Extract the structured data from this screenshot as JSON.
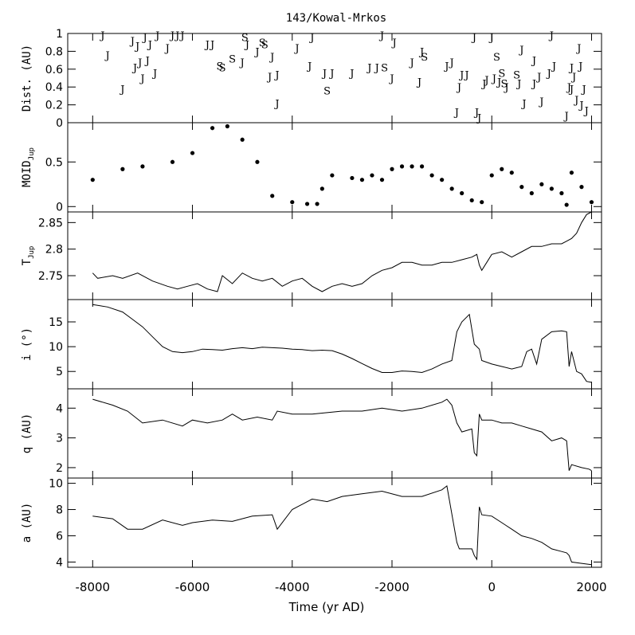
{
  "chart_data": {
    "type": "line",
    "title": "143/Kowal-Mrkos",
    "xlabel": "Time (yr AD)",
    "xlim": [
      -8500,
      2200
    ],
    "xticks": [
      -8000,
      -6000,
      -4000,
      -2000,
      0,
      2000
    ],
    "xtick_labels": [
      "-8000",
      "-6000",
      "-4000",
      "-2000",
      "0",
      "2000"
    ],
    "panels": [
      {
        "id": "dist",
        "ylabel": "Dist. (AU)",
        "ylim": [
          0,
          1
        ],
        "yticks": [
          0,
          0.2,
          0.4,
          0.6,
          0.8,
          1
        ],
        "ytick_labels": [
          "0",
          "0.2",
          "0.4",
          "0.6",
          "0.8",
          "1"
        ],
        "kind": "encounters",
        "encounters": [
          {
            "x": -7800,
            "y": 0.98,
            "label": "J"
          },
          {
            "x": -7700,
            "y": 0.76,
            "label": "J"
          },
          {
            "x": -7400,
            "y": 0.38,
            "label": "J"
          },
          {
            "x": -7200,
            "y": 0.92,
            "label": "J"
          },
          {
            "x": -7150,
            "y": 0.62,
            "label": "J"
          },
          {
            "x": -7100,
            "y": 0.86,
            "label": "J"
          },
          {
            "x": -7050,
            "y": 0.68,
            "label": "J"
          },
          {
            "x": -7000,
            "y": 0.5,
            "label": "J"
          },
          {
            "x": -6950,
            "y": 0.96,
            "label": "J"
          },
          {
            "x": -6900,
            "y": 0.7,
            "label": "J"
          },
          {
            "x": -6850,
            "y": 0.88,
            "label": "J"
          },
          {
            "x": -6750,
            "y": 0.56,
            "label": "J"
          },
          {
            "x": -6700,
            "y": 0.98,
            "label": "J"
          },
          {
            "x": -6500,
            "y": 0.84,
            "label": "J"
          },
          {
            "x": -6400,
            "y": 0.98,
            "label": "J"
          },
          {
            "x": -6300,
            "y": 0.98,
            "label": "J"
          },
          {
            "x": -6200,
            "y": 0.98,
            "label": "J"
          },
          {
            "x": -5700,
            "y": 0.88,
            "label": "J"
          },
          {
            "x": -5600,
            "y": 0.88,
            "label": "J"
          },
          {
            "x": -5450,
            "y": 0.64,
            "label": "S"
          },
          {
            "x": -5400,
            "y": 0.62,
            "label": "S"
          },
          {
            "x": -5200,
            "y": 0.72,
            "label": "S"
          },
          {
            "x": -5000,
            "y": 0.68,
            "label": "J"
          },
          {
            "x": -4950,
            "y": 0.96,
            "label": "S"
          },
          {
            "x": -4900,
            "y": 0.88,
            "label": "J"
          },
          {
            "x": -4700,
            "y": 0.8,
            "label": "J"
          },
          {
            "x": -4600,
            "y": 0.9,
            "label": "S"
          },
          {
            "x": -4550,
            "y": 0.88,
            "label": "S"
          },
          {
            "x": -4450,
            "y": 0.52,
            "label": "J"
          },
          {
            "x": -4400,
            "y": 0.74,
            "label": "J"
          },
          {
            "x": -4300,
            "y": 0.22,
            "label": "J"
          },
          {
            "x": -4300,
            "y": 0.54,
            "label": "J"
          },
          {
            "x": -3900,
            "y": 0.84,
            "label": "J"
          },
          {
            "x": -3650,
            "y": 0.64,
            "label": "J"
          },
          {
            "x": -3600,
            "y": 0.96,
            "label": "J"
          },
          {
            "x": -3350,
            "y": 0.56,
            "label": "J"
          },
          {
            "x": -3300,
            "y": 0.36,
            "label": "S"
          },
          {
            "x": -3200,
            "y": 0.56,
            "label": "J"
          },
          {
            "x": -2800,
            "y": 0.56,
            "label": "J"
          },
          {
            "x": -2450,
            "y": 0.62,
            "label": "J"
          },
          {
            "x": -2300,
            "y": 0.62,
            "label": "J"
          },
          {
            "x": -2200,
            "y": 0.98,
            "label": "J"
          },
          {
            "x": -2150,
            "y": 0.62,
            "label": "S"
          },
          {
            "x": -2000,
            "y": 0.5,
            "label": "J"
          },
          {
            "x": -1950,
            "y": 0.9,
            "label": "J"
          },
          {
            "x": -1600,
            "y": 0.68,
            "label": "J"
          },
          {
            "x": -1450,
            "y": 0.46,
            "label": "J"
          },
          {
            "x": -1400,
            "y": 0.8,
            "label": "J"
          },
          {
            "x": -1350,
            "y": 0.74,
            "label": "S"
          },
          {
            "x": -900,
            "y": 0.64,
            "label": "J"
          },
          {
            "x": -800,
            "y": 0.68,
            "label": "J"
          },
          {
            "x": -700,
            "y": 0.12,
            "label": "J"
          },
          {
            "x": -650,
            "y": 0.4,
            "label": "J"
          },
          {
            "x": -600,
            "y": 0.54,
            "label": "J"
          },
          {
            "x": -500,
            "y": 0.54,
            "label": "J"
          },
          {
            "x": -350,
            "y": 0.96,
            "label": "J"
          },
          {
            "x": -300,
            "y": 0.12,
            "label": "J"
          },
          {
            "x": -250,
            "y": 0.06,
            "label": "J"
          },
          {
            "x": -150,
            "y": 0.44,
            "label": "J"
          },
          {
            "x": -100,
            "y": 0.48,
            "label": "J"
          },
          {
            "x": 0,
            "y": 0.96,
            "label": "J"
          },
          {
            "x": 50,
            "y": 0.5,
            "label": "J"
          },
          {
            "x": 100,
            "y": 0.74,
            "label": "S"
          },
          {
            "x": 150,
            "y": 0.46,
            "label": "J"
          },
          {
            "x": 200,
            "y": 0.56,
            "label": "S"
          },
          {
            "x": 250,
            "y": 0.44,
            "label": "S"
          },
          {
            "x": 300,
            "y": 0.4,
            "label": "J"
          },
          {
            "x": 500,
            "y": 0.54,
            "label": "S"
          },
          {
            "x": 550,
            "y": 0.44,
            "label": "J"
          },
          {
            "x": 600,
            "y": 0.82,
            "label": "J"
          },
          {
            "x": 650,
            "y": 0.22,
            "label": "J"
          },
          {
            "x": 850,
            "y": 0.7,
            "label": "J"
          },
          {
            "x": 850,
            "y": 0.44,
            "label": "J"
          },
          {
            "x": 950,
            "y": 0.52,
            "label": "J"
          },
          {
            "x": 1000,
            "y": 0.24,
            "label": "J"
          },
          {
            "x": 1150,
            "y": 0.56,
            "label": "J"
          },
          {
            "x": 1200,
            "y": 0.98,
            "label": "J"
          },
          {
            "x": 1250,
            "y": 0.64,
            "label": "J"
          },
          {
            "x": 1500,
            "y": 0.08,
            "label": "J"
          },
          {
            "x": 1550,
            "y": 0.4,
            "label": "J"
          },
          {
            "x": 1600,
            "y": 0.38,
            "label": "J"
          },
          {
            "x": 1600,
            "y": 0.62,
            "label": "J"
          },
          {
            "x": 1650,
            "y": 0.52,
            "label": "J"
          },
          {
            "x": 1700,
            "y": 0.26,
            "label": "J"
          },
          {
            "x": 1750,
            "y": 0.84,
            "label": "J"
          },
          {
            "x": 1780,
            "y": 0.64,
            "label": "J"
          },
          {
            "x": 1850,
            "y": 0.38,
            "label": "J"
          },
          {
            "x": 1800,
            "y": 0.2,
            "label": "J"
          },
          {
            "x": 1900,
            "y": 0.14,
            "label": "J"
          }
        ]
      },
      {
        "id": "moid",
        "ylabel": "MOID",
        "ylabel_sub": "Jup",
        "ylim": [
          -0.06,
          0.94
        ],
        "yticks": [
          0,
          0.5
        ],
        "ytick_labels": [
          "0",
          "0.5"
        ],
        "kind": "scatter",
        "x": [
          -8000,
          -7400,
          -7000,
          -6400,
          -6000,
          -5600,
          -5300,
          -5000,
          -4700,
          -4400,
          -4000,
          -3700,
          -3500,
          -3400,
          -3200,
          -2800,
          -2600,
          -2400,
          -2200,
          -2000,
          -1800,
          -1600,
          -1400,
          -1200,
          -1000,
          -800,
          -600,
          -400,
          -200,
          0,
          200,
          400,
          600,
          800,
          1000,
          1200,
          1400,
          1500,
          1600,
          1800,
          2000
        ],
        "y": [
          0.3,
          0.42,
          0.45,
          0.5,
          0.6,
          0.88,
          0.9,
          0.75,
          0.5,
          0.12,
          0.05,
          0.03,
          0.03,
          0.2,
          0.35,
          0.32,
          0.3,
          0.35,
          0.3,
          0.42,
          0.45,
          0.45,
          0.45,
          0.35,
          0.3,
          0.2,
          0.15,
          0.07,
          0.05,
          0.35,
          0.42,
          0.38,
          0.22,
          0.15,
          0.25,
          0.2,
          0.15,
          0.02,
          0.38,
          0.22,
          0.05
        ]
      },
      {
        "id": "tjup",
        "ylabel": "T",
        "ylabel_sub": "Jup",
        "ylim": [
          2.705,
          2.87
        ],
        "yticks": [
          2.75,
          2.8,
          2.85
        ],
        "ytick_labels": [
          "2.75",
          "2.8",
          "2.85"
        ],
        "kind": "line",
        "x": [
          -8000,
          -7900,
          -7600,
          -7400,
          -7100,
          -6800,
          -6500,
          -6300,
          -6100,
          -5900,
          -5700,
          -5500,
          -5400,
          -5200,
          -5000,
          -4800,
          -4600,
          -4400,
          -4200,
          -4000,
          -3800,
          -3600,
          -3400,
          -3200,
          -3000,
          -2800,
          -2600,
          -2400,
          -2200,
          -2000,
          -1800,
          -1600,
          -1400,
          -1200,
          -1000,
          -800,
          -600,
          -400,
          -300,
          -250,
          -200,
          0,
          200,
          400,
          600,
          800,
          1000,
          1200,
          1400,
          1500,
          1600,
          1700,
          1800,
          1900,
          2000
        ],
        "y": [
          2.755,
          2.745,
          2.75,
          2.745,
          2.755,
          2.74,
          2.73,
          2.725,
          2.73,
          2.735,
          2.725,
          2.72,
          2.75,
          2.735,
          2.755,
          2.745,
          2.74,
          2.745,
          2.73,
          2.74,
          2.745,
          2.73,
          2.72,
          2.73,
          2.735,
          2.73,
          2.735,
          2.75,
          2.76,
          2.765,
          2.775,
          2.775,
          2.77,
          2.77,
          2.775,
          2.775,
          2.78,
          2.785,
          2.79,
          2.77,
          2.76,
          2.79,
          2.795,
          2.785,
          2.795,
          2.805,
          2.805,
          2.81,
          2.81,
          2.815,
          2.82,
          2.83,
          2.85,
          2.865,
          2.87
        ]
      },
      {
        "id": "incl",
        "ylabel": "i (°)",
        "ylim": [
          1.5,
          19.5
        ],
        "yticks": [
          5,
          10,
          15
        ],
        "ytick_labels": [
          "5",
          "10",
          "15"
        ],
        "kind": "line",
        "x": [
          -8000,
          -7700,
          -7400,
          -7200,
          -7000,
          -6800,
          -6600,
          -6400,
          -6200,
          -6000,
          -5800,
          -5600,
          -5400,
          -5200,
          -5000,
          -4800,
          -4600,
          -4400,
          -4200,
          -4000,
          -3800,
          -3600,
          -3400,
          -3200,
          -3000,
          -2800,
          -2600,
          -2400,
          -2200,
          -2000,
          -1800,
          -1600,
          -1400,
          -1200,
          -1000,
          -800,
          -700,
          -650,
          -600,
          -450,
          -350,
          -300,
          -250,
          -200,
          0,
          200,
          400,
          600,
          700,
          800,
          900,
          1000,
          1200,
          1400,
          1500,
          1550,
          1600,
          1700,
          1800,
          1900,
          2000
        ],
        "y": [
          18.5,
          18,
          17,
          15.5,
          14,
          12,
          10,
          9,
          8.8,
          9,
          9.5,
          9.4,
          9.3,
          9.6,
          9.8,
          9.6,
          9.9,
          9.8,
          9.7,
          9.5,
          9.4,
          9.2,
          9.3,
          9.2,
          8.5,
          7.6,
          6.6,
          5.6,
          4.8,
          4.8,
          5.1,
          5.0,
          4.8,
          5.5,
          6.5,
          7.2,
          13,
          14,
          15,
          16.5,
          10.5,
          10,
          9.5,
          7.2,
          6.5,
          6.0,
          5.5,
          6.0,
          9.0,
          9.5,
          6.5,
          11.5,
          13,
          13.2,
          13.0,
          6.0,
          9.0,
          5.0,
          4.5,
          3.0,
          2.8
        ]
      },
      {
        "id": "q",
        "ylabel": "q (AU)",
        "ylim": [
          1.65,
          4.65
        ],
        "yticks": [
          2,
          3,
          4
        ],
        "ytick_labels": [
          "2",
          "3",
          "4"
        ],
        "kind": "line",
        "x": [
          -8000,
          -7600,
          -7300,
          -7000,
          -6600,
          -6200,
          -6000,
          -5700,
          -5400,
          -5200,
          -5000,
          -4700,
          -4400,
          -4300,
          -4000,
          -3600,
          -3300,
          -3000,
          -2600,
          -2200,
          -1800,
          -1400,
          -1000,
          -900,
          -800,
          -700,
          -600,
          -400,
          -350,
          -300,
          -250,
          -200,
          0,
          200,
          400,
          600,
          800,
          1000,
          1200,
          1400,
          1500,
          1550,
          1600,
          1800,
          1950,
          2000
        ],
        "y": [
          4.3,
          4.1,
          3.9,
          3.5,
          3.6,
          3.4,
          3.6,
          3.5,
          3.6,
          3.8,
          3.6,
          3.7,
          3.6,
          3.9,
          3.8,
          3.8,
          3.85,
          3.9,
          3.9,
          4.0,
          3.9,
          4.0,
          4.2,
          4.3,
          4.1,
          3.5,
          3.2,
          3.3,
          2.5,
          2.4,
          3.8,
          3.6,
          3.6,
          3.5,
          3.5,
          3.4,
          3.3,
          3.2,
          2.9,
          3.0,
          2.9,
          1.9,
          2.1,
          2.0,
          1.95,
          1.9
        ]
      },
      {
        "id": "a",
        "ylabel": "a (AU)",
        "ylim": [
          3.6,
          10.4
        ],
        "yticks": [
          4,
          6,
          8,
          10
        ],
        "ytick_labels": [
          "4",
          "6",
          "8",
          "10"
        ],
        "kind": "line",
        "x": [
          -8000,
          -7600,
          -7300,
          -7000,
          -6600,
          -6200,
          -6000,
          -5600,
          -5200,
          -4800,
          -4400,
          -4300,
          -4000,
          -3600,
          -3300,
          -3000,
          -2600,
          -2200,
          -1800,
          -1400,
          -1000,
          -900,
          -700,
          -650,
          -400,
          -350,
          -300,
          -250,
          -200,
          0,
          200,
          400,
          600,
          800,
          1000,
          1200,
          1400,
          1500,
          1550,
          1600,
          1800,
          2000
        ],
        "y": [
          7.5,
          7.3,
          6.5,
          6.5,
          7.2,
          6.8,
          7.0,
          7.2,
          7.1,
          7.5,
          7.6,
          6.5,
          8.0,
          8.8,
          8.6,
          9.0,
          9.2,
          9.4,
          9.0,
          9.0,
          9.5,
          9.8,
          5.5,
          5.0,
          5.0,
          4.5,
          4.2,
          8.2,
          7.6,
          7.5,
          7.0,
          6.5,
          6.0,
          5.8,
          5.5,
          5.0,
          4.8,
          4.7,
          4.5,
          4.0,
          3.9,
          3.8
        ]
      }
    ]
  }
}
